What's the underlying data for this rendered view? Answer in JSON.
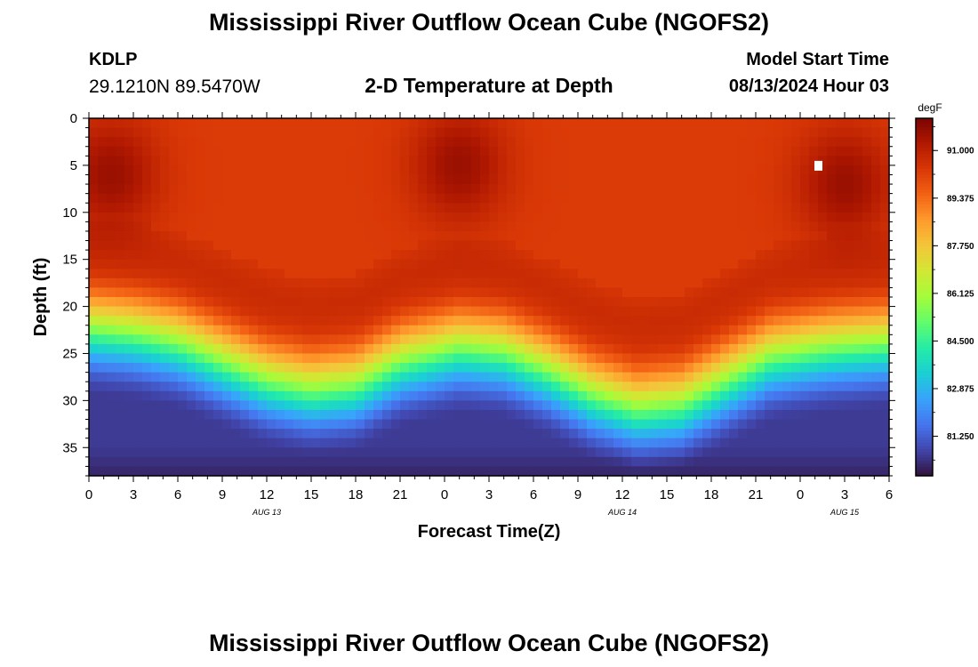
{
  "page": {
    "title": "Mississippi River Outflow Ocean Cube (NGOFS2)",
    "title_repeat": "Mississippi River Outflow Ocean Cube (NGOFS2)",
    "station_id": "KDLP",
    "station_coords": "29.1210N  89.5470W",
    "plot_title": "2-D Temperature at Depth",
    "model_start_label": "Model Start Time",
    "model_start_value": "08/13/2024 Hour 03"
  },
  "chart_data": {
    "type": "heatmap",
    "title": "2-D Temperature at Depth",
    "xlabel": "Forecast Time(Z)",
    "ylabel": "Depth (ft)",
    "x_range_hours": [
      0,
      54
    ],
    "x_ticks": [
      {
        "h": 0,
        "label": "0"
      },
      {
        "h": 3,
        "label": "3"
      },
      {
        "h": 6,
        "label": "6"
      },
      {
        "h": 9,
        "label": "9"
      },
      {
        "h": 12,
        "label": "12"
      },
      {
        "h": 15,
        "label": "15"
      },
      {
        "h": 18,
        "label": "18"
      },
      {
        "h": 21,
        "label": "21"
      },
      {
        "h": 24,
        "label": "0"
      },
      {
        "h": 27,
        "label": "3"
      },
      {
        "h": 30,
        "label": "6"
      },
      {
        "h": 33,
        "label": "9"
      },
      {
        "h": 36,
        "label": "12"
      },
      {
        "h": 39,
        "label": "15"
      },
      {
        "h": 42,
        "label": "18"
      },
      {
        "h": 45,
        "label": "21"
      },
      {
        "h": 48,
        "label": "0"
      },
      {
        "h": 51,
        "label": "3"
      },
      {
        "h": 54,
        "label": "6"
      }
    ],
    "date_labels": [
      {
        "h": 12,
        "label": "AUG 13"
      },
      {
        "h": 36,
        "label": "AUG 14"
      },
      {
        "h": 51,
        "label": "AUG 15"
      }
    ],
    "y_range_ft": [
      0,
      38
    ],
    "y_ticks": [
      0,
      5,
      10,
      15,
      20,
      25,
      30,
      35
    ],
    "colorbar": {
      "unit": "degF",
      "min": 79.9,
      "max": 92.1,
      "ticks": [
        "91.000",
        "89.375",
        "87.750",
        "86.125",
        "84.500",
        "82.875",
        "81.250"
      ],
      "colors": [
        "#30123b",
        "#4145ab",
        "#4675ed",
        "#39a2fc",
        "#1bcfd4",
        "#24eca6",
        "#61fc6c",
        "#a4fc3b",
        "#d1e834",
        "#f3c63a",
        "#fe9b2d",
        "#f36315",
        "#d93806",
        "#b11901",
        "#7a0402"
      ]
    },
    "temperature_model": {
      "surface_degF": 90.3,
      "warm_core_degF": 91.6,
      "bottom_degF": 80.6,
      "warm_cores": [
        {
          "time_h": 1.5,
          "depth_ft": 6
        },
        {
          "time_h": 25,
          "depth_ft": 5
        },
        {
          "time_h": 51,
          "depth_ft": 7
        }
      ],
      "thermocline_depth_ft": [
        {
          "time_h": 0,
          "depth_ft": 18.5
        },
        {
          "time_h": 3,
          "depth_ft": 19
        },
        {
          "time_h": 6,
          "depth_ft": 20
        },
        {
          "time_h": 9,
          "depth_ft": 22
        },
        {
          "time_h": 12,
          "depth_ft": 24
        },
        {
          "time_h": 15,
          "depth_ft": 25
        },
        {
          "time_h": 18,
          "depth_ft": 24.5
        },
        {
          "time_h": 21,
          "depth_ft": 22
        },
        {
          "time_h": 25,
          "depth_ft": 20.5
        },
        {
          "time_h": 28,
          "depth_ft": 21
        },
        {
          "time_h": 31,
          "depth_ft": 23
        },
        {
          "time_h": 34,
          "depth_ft": 25.5
        },
        {
          "time_h": 37,
          "depth_ft": 27
        },
        {
          "time_h": 40,
          "depth_ft": 26.5
        },
        {
          "time_h": 43,
          "depth_ft": 24
        },
        {
          "time_h": 46,
          "depth_ft": 21.5
        },
        {
          "time_h": 50,
          "depth_ft": 20.5
        },
        {
          "time_h": 54,
          "depth_ft": 20
        }
      ],
      "marker": {
        "time_h": 49.2,
        "depth_ft": 5
      }
    }
  }
}
